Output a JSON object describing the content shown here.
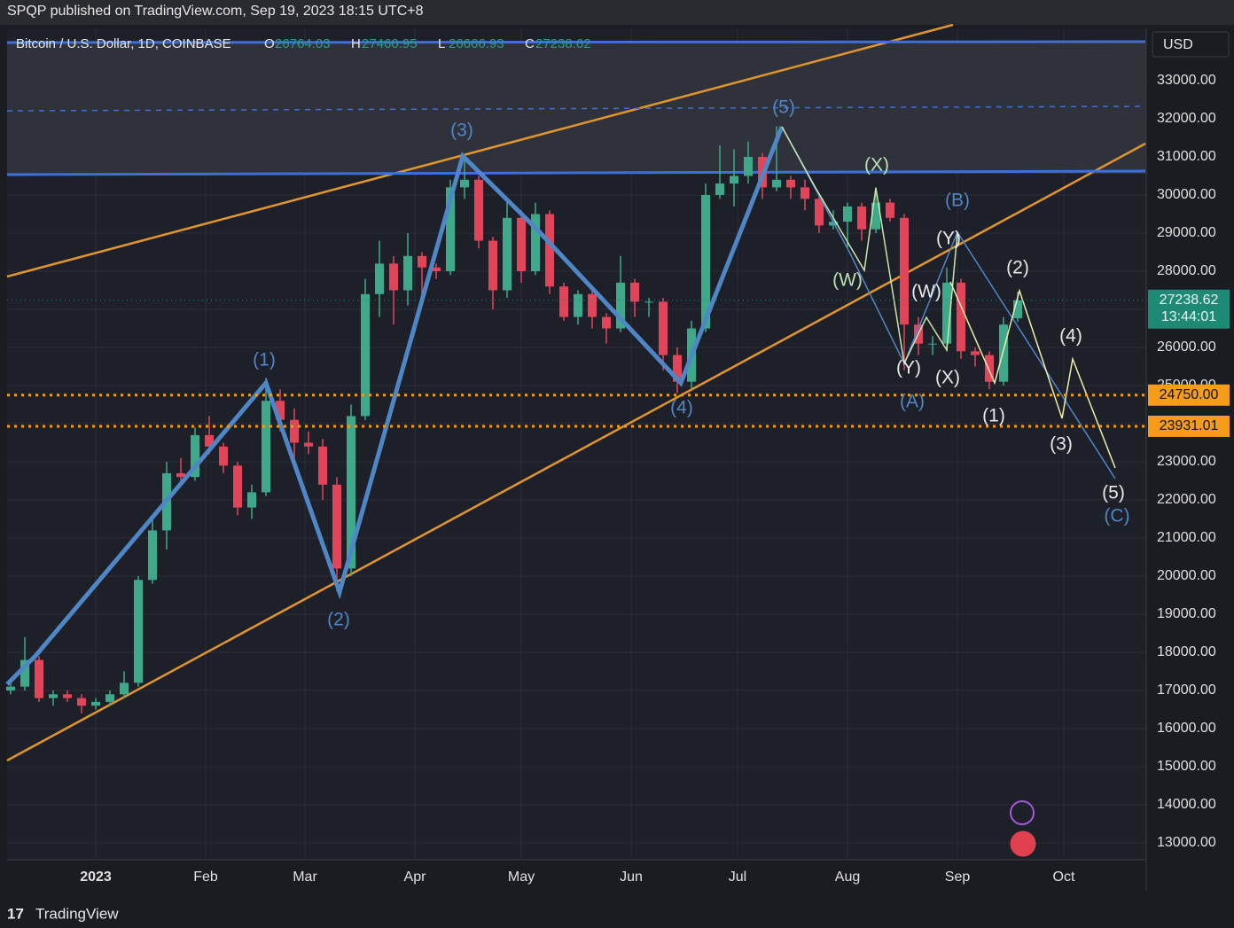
{
  "header": {
    "publisher": "SPQP published on TradingView.com, Sep 19, 2023 18:15 UTC+8",
    "brand": "TradingView"
  },
  "chart_data": {
    "type": "candlestick",
    "title": "Bitcoin / U.S. Dollar, 1D, COINBASE",
    "legend": {
      "open_label": "O",
      "open": 26764.03,
      "high_label": "H",
      "high": 27460.95,
      "low_label": "L",
      "low": 26666.93,
      "close_label": "C",
      "close": 27238.62
    },
    "currency": "USD",
    "up_color": "#3fa88b",
    "down_color": "#e0455a",
    "ohlc": [
      [
        17000,
        17300,
        16900,
        17100
      ],
      [
        17100,
        18400,
        17000,
        17800
      ],
      [
        17800,
        17900,
        16700,
        16800
      ],
      [
        16800,
        17000,
        16600,
        16900
      ],
      [
        16900,
        17000,
        16700,
        16800
      ],
      [
        16800,
        16900,
        16400,
        16600
      ],
      [
        16600,
        16800,
        16500,
        16700
      ],
      [
        16700,
        17000,
        16600,
        16900
      ],
      [
        16900,
        17500,
        16800,
        17200
      ],
      [
        17200,
        20000,
        17100,
        19900
      ],
      [
        19900,
        21500,
        19800,
        21200
      ],
      [
        21200,
        23000,
        20700,
        22700
      ],
      [
        22700,
        23100,
        22400,
        22600
      ],
      [
        22600,
        23900,
        22500,
        23700
      ],
      [
        23700,
        24200,
        23200,
        23400
      ],
      [
        23400,
        23500,
        22700,
        22900
      ],
      [
        22900,
        23000,
        21600,
        21800
      ],
      [
        21800,
        22400,
        21500,
        22200
      ],
      [
        22200,
        25200,
        22100,
        24600
      ],
      [
        24600,
        24900,
        23800,
        24100
      ],
      [
        24100,
        24400,
        23100,
        23500
      ],
      [
        23500,
        23800,
        23200,
        23400
      ],
      [
        23400,
        23600,
        22000,
        22400
      ],
      [
        22400,
        22600,
        19600,
        20200
      ],
      [
        20200,
        24500,
        20000,
        24200
      ],
      [
        24200,
        27800,
        24100,
        27400
      ],
      [
        27400,
        28800,
        26800,
        28200
      ],
      [
        28200,
        28400,
        26600,
        27500
      ],
      [
        27500,
        29000,
        27100,
        28400
      ],
      [
        28400,
        28500,
        27300,
        28100
      ],
      [
        28100,
        28200,
        27800,
        28000
      ],
      [
        28000,
        30400,
        27900,
        30200
      ],
      [
        30200,
        31000,
        29900,
        30400
      ],
      [
        30400,
        30500,
        28600,
        28800
      ],
      [
        28800,
        28900,
        27000,
        27500
      ],
      [
        27500,
        29900,
        27300,
        29400
      ],
      [
        29400,
        29600,
        27700,
        28000
      ],
      [
        28000,
        29800,
        27900,
        29500
      ],
      [
        29500,
        29600,
        27400,
        27600
      ],
      [
        27600,
        27700,
        26700,
        26800
      ],
      [
        26800,
        27500,
        26600,
        27400
      ],
      [
        27400,
        27500,
        26500,
        26800
      ],
      [
        26800,
        26900,
        26100,
        26500
      ],
      [
        26500,
        28400,
        26400,
        27700
      ],
      [
        27700,
        27800,
        26800,
        27200
      ],
      [
        27200,
        27300,
        26800,
        27200
      ],
      [
        27200,
        27300,
        25400,
        25800
      ],
      [
        25800,
        26000,
        24800,
        25100
      ],
      [
        25100,
        26700,
        24900,
        26500
      ],
      [
        26500,
        30300,
        26400,
        30000
      ],
      [
        30000,
        31300,
        29900,
        30300
      ],
      [
        30300,
        31200,
        29700,
        30500
      ],
      [
        30500,
        31400,
        30300,
        31000
      ],
      [
        31000,
        31100,
        29900,
        30200
      ],
      [
        30200,
        31800,
        30100,
        30400
      ],
      [
        30400,
        30500,
        29900,
        30200
      ],
      [
        30200,
        30400,
        29600,
        29900
      ],
      [
        29900,
        30000,
        29000,
        29200
      ],
      [
        29200,
        29600,
        29100,
        29300
      ],
      [
        29300,
        29800,
        28600,
        29700
      ],
      [
        29700,
        29800,
        28800,
        29100
      ],
      [
        29100,
        30200,
        29000,
        29800
      ],
      [
        29800,
        29900,
        29300,
        29400
      ],
      [
        29400,
        29500,
        25400,
        26600
      ],
      [
        26600,
        26800,
        25800,
        26100
      ],
      [
        26100,
        26300,
        25800,
        26100
      ],
      [
        26100,
        28100,
        25900,
        27700
      ],
      [
        27700,
        27800,
        25700,
        25900
      ],
      [
        25900,
        26000,
        25500,
        25800
      ],
      [
        25800,
        25900,
        24900,
        25100
      ],
      [
        25100,
        26800,
        25000,
        26600
      ],
      [
        26764.03,
        27460.95,
        26666.93,
        27238.62
      ]
    ],
    "xlim": [
      -0.25,
      80
    ],
    "xticks": [
      {
        "value": 6,
        "label": "2023"
      },
      {
        "value": 13.75,
        "label": "Feb"
      },
      {
        "value": 20.75,
        "label": "Mar"
      },
      {
        "value": 28.5,
        "label": "Apr"
      },
      {
        "value": 36,
        "label": "May"
      },
      {
        "value": 43.75,
        "label": "Jun"
      },
      {
        "value": 51.25,
        "label": "Jul"
      },
      {
        "value": 59,
        "label": "Aug"
      },
      {
        "value": 66.75,
        "label": "Sep"
      },
      {
        "value": 74.25,
        "label": "Oct"
      }
    ],
    "ylim": [
      12558,
      34372
    ],
    "yticks": [
      {
        "value": 13000,
        "label": "13000.00"
      },
      {
        "value": 14000,
        "label": "14000.00"
      },
      {
        "value": 15000,
        "label": "15000.00"
      },
      {
        "value": 16000,
        "label": "16000.00"
      },
      {
        "value": 17000,
        "label": "17000.00"
      },
      {
        "value": 18000,
        "label": "18000.00"
      },
      {
        "value": 19000,
        "label": "19000.00"
      },
      {
        "value": 20000,
        "label": "20000.00"
      },
      {
        "value": 21000,
        "label": "21000.00"
      },
      {
        "value": 22000,
        "label": "22000.00"
      },
      {
        "value": 23000,
        "label": "23000.00"
      },
      {
        "value": 24000,
        "label": "24000.00"
      },
      {
        "value": 25000,
        "label": "25000.00"
      },
      {
        "value": 26000,
        "label": "26000.00"
      },
      {
        "value": 27000,
        "label": "27000.00"
      },
      {
        "value": 28000,
        "label": "28000.00"
      },
      {
        "value": 29000,
        "label": "29000.00"
      },
      {
        "value": 30000,
        "label": "30000.00"
      },
      {
        "value": 31000,
        "label": "31000.00"
      },
      {
        "value": 32000,
        "label": "32000.00"
      },
      {
        "value": 33000,
        "label": "33000.00"
      }
    ],
    "grid": true,
    "levels": [
      {
        "value": 24750,
        "label": "24750.00",
        "color": "#f59c1a"
      },
      {
        "value": 23931.01,
        "color": "#f59c1a"
      }
    ],
    "last_price": {
      "value": 27238.62,
      "countdown": "13:44:01",
      "color": "#1e8a76"
    },
    "wave_labels": [
      "(1)",
      "(2)",
      "(3)",
      "(4)",
      "(5)",
      "(A)",
      "(B)",
      "(C)",
      "(W)",
      "(X)",
      "(Y)",
      "(W)",
      "(X)",
      "(Y)",
      "(1)",
      "(2)",
      "(3)",
      "(4)",
      "(5)"
    ]
  }
}
